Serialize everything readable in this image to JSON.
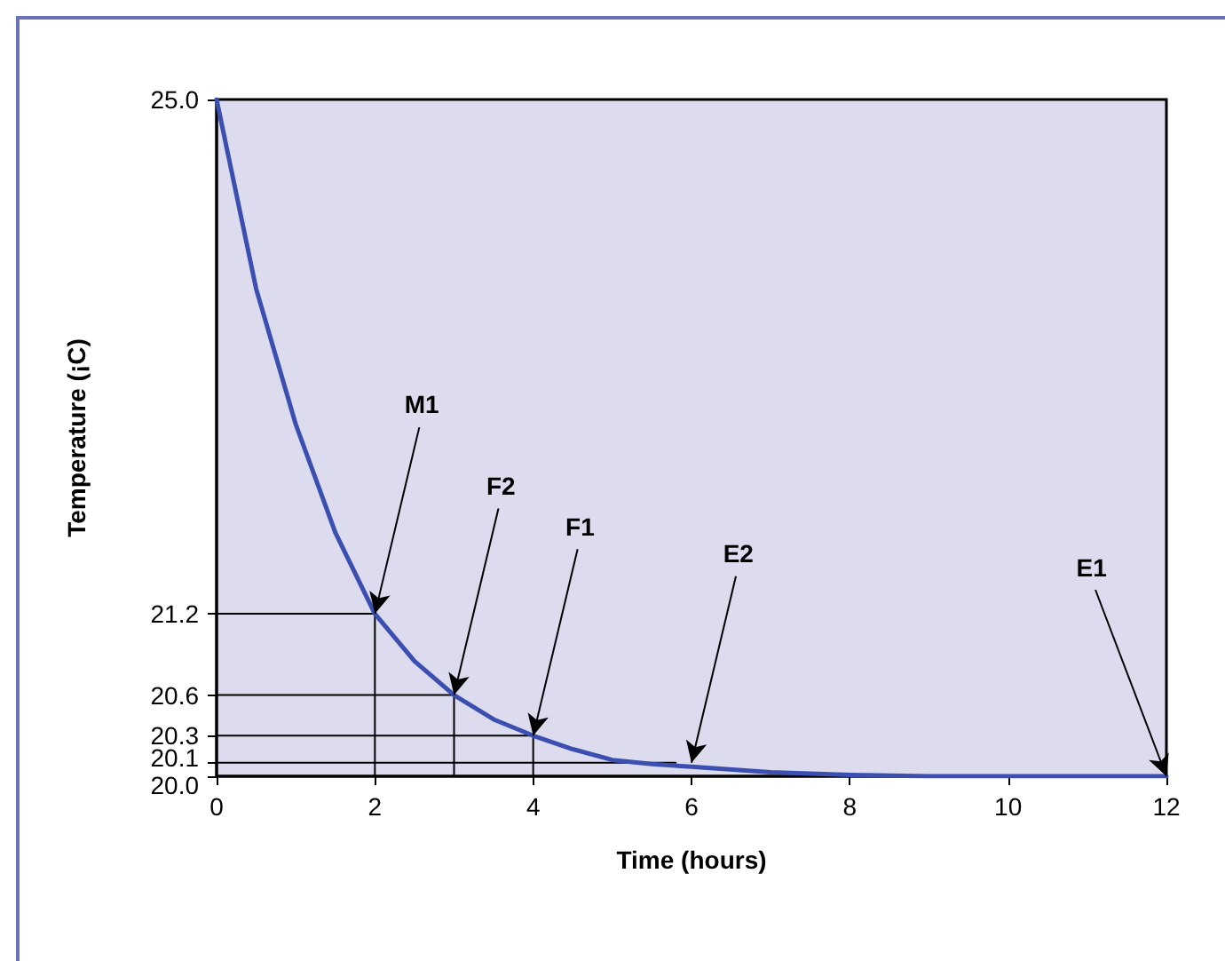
{
  "chart_data": {
    "type": "line",
    "xlabel": "Time (hours)",
    "ylabel": "Temperature (¡C)",
    "series": [
      {
        "color": "#3a4fb0",
        "x": [
          0,
          0.25,
          0.5,
          0.75,
          1,
          1.25,
          1.5,
          1.75,
          2,
          2.5,
          3,
          3.5,
          4,
          4.5,
          5,
          5.5,
          6,
          7,
          8,
          9,
          10,
          11,
          12
        ],
        "values": [
          25.0,
          24.3,
          23.6,
          23.1,
          22.6,
          22.2,
          21.8,
          21.5,
          21.2,
          20.85,
          20.6,
          20.42,
          20.3,
          20.2,
          20.12,
          20.09,
          20.07,
          20.03,
          20.01,
          20.0,
          20.0,
          20.0,
          20.0
        ]
      },
      {
        "color": "#000000",
        "x": [
          0,
          2,
          2
        ],
        "values": [
          21.2,
          21.2,
          20.0
        ]
      },
      {
        "color": "#000000",
        "x": [
          0,
          3,
          3
        ],
        "values": [
          20.6,
          20.6,
          20.0
        ]
      },
      {
        "color": "#000000",
        "x": [
          0,
          4,
          4
        ],
        "values": [
          20.3,
          20.3,
          20.0
        ]
      },
      {
        "color": "#000000",
        "x": [
          0,
          5.8
        ],
        "values": [
          20.1,
          20.1
        ]
      }
    ],
    "annotations": [
      {
        "text": "M1",
        "x": 2,
        "y": 21.2
      },
      {
        "text": "F2",
        "x": 3,
        "y": 20.6
      },
      {
        "text": "F1",
        "x": 4,
        "y": 20.3
      },
      {
        "text": "E2",
        "x": 6,
        "y": 20.1
      },
      {
        "text": "E1",
        "x": 12,
        "y": 20.0
      }
    ],
    "xlim": [
      0,
      12
    ],
    "xticks": [
      0,
      2,
      4,
      6,
      8,
      10,
      12
    ],
    "ylim": [
      20.0,
      25.0
    ],
    "yticks": [
      {
        "value": 20,
        "label": "20.0"
      },
      {
        "value": 20.1,
        "label": "20.1"
      },
      {
        "value": 20.3,
        "label": "20.3"
      },
      {
        "value": 20.6,
        "label": "20.6"
      },
      {
        "value": 21.2,
        "label": "21.2"
      },
      {
        "value": 25,
        "label": "25.0"
      }
    ],
    "grid": false,
    "marker": "none",
    "line_style": "solid"
  }
}
